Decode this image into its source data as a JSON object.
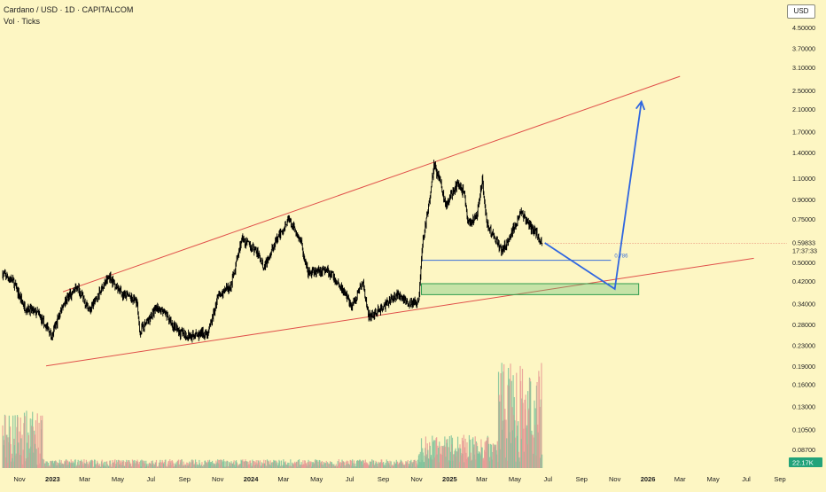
{
  "header": {
    "title": "Cardano / USD · 1D · CAPITALCOM",
    "subtitle": "Vol · Ticks",
    "currency": "USD"
  },
  "chart_data": {
    "type": "candlestick",
    "symbol": "Cardano / USD",
    "interval": "1D",
    "exchange": "CAPITALCOM",
    "y_scale": "log",
    "ylim": [
      0.066,
      5.6
    ],
    "y_ticks": [
      4.5,
      3.7,
      3.1,
      2.5,
      2.1,
      1.7,
      1.4,
      1.1,
      0.9,
      0.75,
      0.5,
      0.42,
      0.34,
      0.28,
      0.23,
      0.19,
      0.16,
      0.13,
      0.105,
      0.087
    ],
    "y_tick_labels": [
      "4.50000",
      "3.70000",
      "3.10000",
      "2.50000",
      "2.10000",
      "1.70000",
      "1.40000",
      "1.10000",
      "0.90000",
      "0.75000",
      "0.50000",
      "0.42000",
      "0.34000",
      "0.28000",
      "0.23000",
      "0.19000",
      "0.16000",
      "0.13000",
      "0.10500",
      "0.08700"
    ],
    "x_ticks": [
      {
        "date": "2022-11-01",
        "label": "Nov",
        "bold": false
      },
      {
        "date": "2023-01-01",
        "label": "2023",
        "bold": true
      },
      {
        "date": "2023-03-01",
        "label": "Mar",
        "bold": false
      },
      {
        "date": "2023-05-01",
        "label": "May",
        "bold": false
      },
      {
        "date": "2023-07-01",
        "label": "Jul",
        "bold": false
      },
      {
        "date": "2023-09-01",
        "label": "Sep",
        "bold": false
      },
      {
        "date": "2023-11-01",
        "label": "Nov",
        "bold": false
      },
      {
        "date": "2024-01-01",
        "label": "2024",
        "bold": true
      },
      {
        "date": "2024-03-01",
        "label": "Mar",
        "bold": false
      },
      {
        "date": "2024-05-01",
        "label": "May",
        "bold": false
      },
      {
        "date": "2024-07-01",
        "label": "Jul",
        "bold": false
      },
      {
        "date": "2024-09-01",
        "label": "Sep",
        "bold": false
      },
      {
        "date": "2024-11-01",
        "label": "Nov",
        "bold": false
      },
      {
        "date": "2025-01-01",
        "label": "2025",
        "bold": true
      },
      {
        "date": "2025-03-01",
        "label": "Mar",
        "bold": false
      },
      {
        "date": "2025-05-01",
        "label": "May",
        "bold": false
      },
      {
        "date": "2025-07-01",
        "label": "Jul",
        "bold": false
      },
      {
        "date": "2025-09-01",
        "label": "Sep",
        "bold": false
      },
      {
        "date": "2025-11-01",
        "label": "Nov",
        "bold": false
      },
      {
        "date": "2026-01-01",
        "label": "2026",
        "bold": true
      },
      {
        "date": "2026-03-01",
        "label": "Mar",
        "bold": false
      },
      {
        "date": "2026-05-01",
        "label": "May",
        "bold": false
      },
      {
        "date": "2026-07-01",
        "label": "Jul",
        "bold": false
      },
      {
        "date": "2026-09-01",
        "label": "Sep",
        "bold": false
      }
    ],
    "price_series": [
      {
        "date": "2022-10-01",
        "price": 0.45
      },
      {
        "date": "2022-10-20",
        "price": 0.42
      },
      {
        "date": "2022-11-10",
        "price": 0.33
      },
      {
        "date": "2022-12-05",
        "price": 0.31
      },
      {
        "date": "2022-12-31",
        "price": 0.25
      },
      {
        "date": "2023-01-20",
        "price": 0.34
      },
      {
        "date": "2023-02-15",
        "price": 0.4
      },
      {
        "date": "2023-03-10",
        "price": 0.32
      },
      {
        "date": "2023-04-15",
        "price": 0.44
      },
      {
        "date": "2023-05-10",
        "price": 0.37
      },
      {
        "date": "2023-06-05",
        "price": 0.35
      },
      {
        "date": "2023-06-10",
        "price": 0.26
      },
      {
        "date": "2023-06-30",
        "price": 0.3
      },
      {
        "date": "2023-07-12",
        "price": 0.33
      },
      {
        "date": "2023-08-01",
        "price": 0.3
      },
      {
        "date": "2023-08-20",
        "price": 0.26
      },
      {
        "date": "2023-09-15",
        "price": 0.25
      },
      {
        "date": "2023-10-15",
        "price": 0.26
      },
      {
        "date": "2023-11-01",
        "price": 0.36
      },
      {
        "date": "2023-11-25",
        "price": 0.4
      },
      {
        "date": "2023-12-15",
        "price": 0.62
      },
      {
        "date": "2024-01-10",
        "price": 0.56
      },
      {
        "date": "2024-01-25",
        "price": 0.48
      },
      {
        "date": "2024-02-15",
        "price": 0.6
      },
      {
        "date": "2024-03-10",
        "price": 0.75
      },
      {
        "date": "2024-04-01",
        "price": 0.62
      },
      {
        "date": "2024-04-15",
        "price": 0.45
      },
      {
        "date": "2024-05-20",
        "price": 0.47
      },
      {
        "date": "2024-06-15",
        "price": 0.4
      },
      {
        "date": "2024-07-05",
        "price": 0.33
      },
      {
        "date": "2024-07-25",
        "price": 0.42
      },
      {
        "date": "2024-08-05",
        "price": 0.3
      },
      {
        "date": "2024-09-01",
        "price": 0.33
      },
      {
        "date": "2024-09-25",
        "price": 0.37
      },
      {
        "date": "2024-10-20",
        "price": 0.34
      },
      {
        "date": "2024-11-05",
        "price": 0.35
      },
      {
        "date": "2024-11-12",
        "price": 0.6
      },
      {
        "date": "2024-11-25",
        "price": 0.9
      },
      {
        "date": "2024-12-03",
        "price": 1.25
      },
      {
        "date": "2024-12-15",
        "price": 1.05
      },
      {
        "date": "2024-12-25",
        "price": 0.85
      },
      {
        "date": "2025-01-15",
        "price": 1.05
      },
      {
        "date": "2025-01-28",
        "price": 0.95
      },
      {
        "date": "2025-02-03",
        "price": 0.72
      },
      {
        "date": "2025-02-20",
        "price": 0.76
      },
      {
        "date": "2025-03-02",
        "price": 1.1
      },
      {
        "date": "2025-03-10",
        "price": 0.72
      },
      {
        "date": "2025-04-07",
        "price": 0.56
      },
      {
        "date": "2025-04-20",
        "price": 0.62
      },
      {
        "date": "2025-05-12",
        "price": 0.8
      },
      {
        "date": "2025-05-28",
        "price": 0.7
      },
      {
        "date": "2025-06-10",
        "price": 0.66
      },
      {
        "date": "2025-06-20",
        "price": 0.59
      }
    ],
    "current_price": {
      "value": 0.59833,
      "label": "0.59833",
      "countdown": "17:37:33"
    },
    "volume": {
      "latest_label": "22.17K"
    },
    "annotations": [
      {
        "type": "trendline",
        "role": "upper-channel",
        "color": "#e0504a",
        "from": {
          "date": "2023-01-20",
          "price": 0.38
        },
        "to": {
          "date": "2026-03-01",
          "price": 2.85
        }
      },
      {
        "type": "trendline",
        "role": "lower-channel",
        "color": "#e0504a",
        "from": {
          "date": "2022-12-20",
          "price": 0.19
        },
        "to": {
          "date": "2026-07-15",
          "price": 0.52
        }
      },
      {
        "type": "horizontal-level",
        "label": "0.786",
        "color": "#3b6fd8",
        "price": 0.51,
        "from": "2024-11-10",
        "to": "2025-10-25"
      },
      {
        "type": "zone",
        "color": "#5fbf73",
        "top": 0.41,
        "bottom": 0.37,
        "from": "2024-11-10",
        "to": "2025-12-15"
      },
      {
        "type": "projection-arrow",
        "color": "#2f66e0",
        "points": [
          {
            "date": "2025-06-25",
            "price": 0.6
          },
          {
            "date": "2025-11-01",
            "price": 0.39
          },
          {
            "date": "2025-12-20",
            "price": 2.25
          }
        ]
      }
    ]
  }
}
